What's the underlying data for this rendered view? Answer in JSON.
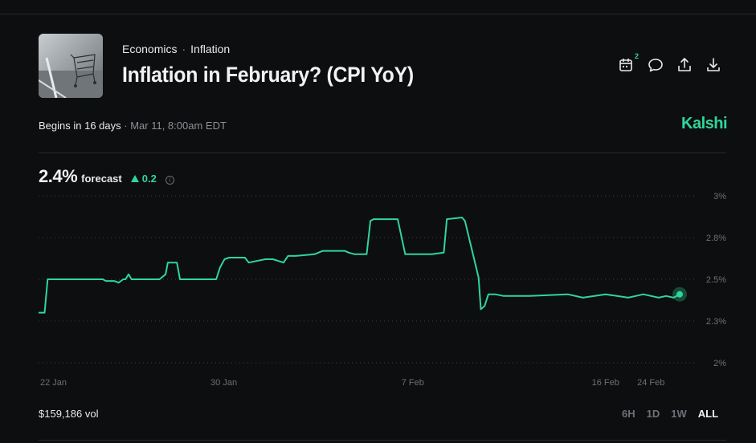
{
  "market": {
    "breadcrumb": [
      "Economics",
      "Inflation"
    ],
    "title": "Inflation in February? (CPI YoY)",
    "begins_label": "Begins in 16 days",
    "begins_date": "Mar 11, 8:00am EDT",
    "brand": "Kalshi",
    "calendar_badge": "2"
  },
  "forecast": {
    "value": "2.4%",
    "label": "forecast",
    "delta": "0.2",
    "delta_direction": "up"
  },
  "chart_data": {
    "type": "line",
    "x_ticks": [
      "22 Jan",
      "30 Jan",
      "7 Feb",
      "16 Feb",
      "24 Feb"
    ],
    "y_ticks": [
      "3%",
      "2.8%",
      "2.5%",
      "2.3%",
      "2%"
    ],
    "ylim": [
      2.0,
      3.0
    ],
    "line_color": "#2fd699",
    "grid": true,
    "series": [
      {
        "x": [
          0,
          0.8,
          1.2,
          8.5,
          8.9,
          10.0,
          10.6,
          11.2,
          11.5,
          11.9,
          12.3,
          16.0,
          16.8,
          17.1,
          17.5,
          18.3,
          18.7,
          21.5,
          23.5,
          24.0,
          24.6,
          25.2,
          27.3,
          27.8,
          30.0,
          31.0,
          32.4,
          33.0,
          34.0,
          36.5,
          37.6,
          40.5,
          41.0,
          41.8,
          43.4,
          43.9,
          44.3,
          45.2,
          47.5,
          48.5,
          52.0,
          53.6,
          54.0,
          56.0,
          56.4,
          58.2,
          58.5,
          59.0,
          59.5,
          60.4,
          61.5,
          65.0,
          70.0,
          72.0,
          75.0,
          78.0,
          80.0,
          82.0,
          83.0,
          84.0,
          84.8
        ],
        "y": [
          2.3,
          2.3,
          2.5,
          2.5,
          2.49,
          2.49,
          2.48,
          2.5,
          2.5,
          2.53,
          2.5,
          2.5,
          2.53,
          2.6,
          2.6,
          2.6,
          2.5,
          2.5,
          2.5,
          2.57,
          2.62,
          2.63,
          2.63,
          2.6,
          2.62,
          2.62,
          2.6,
          2.64,
          2.64,
          2.65,
          2.67,
          2.67,
          2.66,
          2.65,
          2.65,
          2.85,
          2.86,
          2.86,
          2.86,
          2.65,
          2.65,
          2.66,
          2.86,
          2.87,
          2.85,
          2.51,
          2.32,
          2.34,
          2.41,
          2.41,
          2.4,
          2.4,
          2.41,
          2.39,
          2.41,
          2.39,
          2.41,
          2.39,
          2.4,
          2.39,
          2.41
        ]
      }
    ]
  },
  "footer": {
    "volume": "$159,186 vol",
    "ranges": [
      "6H",
      "1D",
      "1W",
      "ALL"
    ],
    "active_range": "ALL"
  }
}
